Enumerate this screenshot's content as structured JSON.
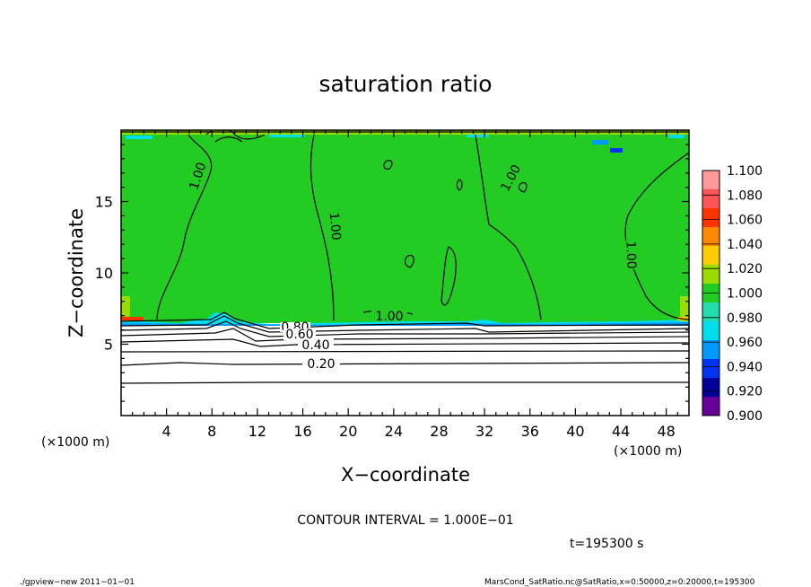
{
  "chart_data": {
    "type": "heatmap",
    "title": "saturation ratio",
    "xlabel": "X−coordinate",
    "ylabel": "Z−coordinate",
    "x_unit_left": "(×1000 m)",
    "x_unit_right": "(×1000 m)",
    "xlim": [
      0,
      50
    ],
    "ylim": [
      0,
      20
    ],
    "x_ticks": [
      4,
      8,
      12,
      16,
      20,
      24,
      28,
      32,
      36,
      40,
      44,
      48
    ],
    "y_ticks": [
      5,
      10,
      15
    ],
    "colorbar": {
      "levels": [
        "1.100",
        "1.080",
        "1.060",
        "1.040",
        "1.020",
        "1.000",
        "0.980",
        "0.960",
        "0.940",
        "0.920",
        "0.900"
      ],
      "colors": [
        "#ff9999",
        "#ff5555",
        "#ff3300",
        "#ff8800",
        "#ffcc00",
        "#99dd00",
        "#22cc22",
        "#22ddaa",
        "#00ddee",
        "#0099ff",
        "#0033ee",
        "#000099",
        "#660099"
      ]
    },
    "contour_labels": [
      {
        "text": "1.00",
        "x": 4.5,
        "z": 15.7
      },
      {
        "text": "1.00",
        "x": 18.6,
        "z": 12.5
      },
      {
        "text": "1.00",
        "x": 34.8,
        "z": 16.4
      },
      {
        "text": "1.00",
        "x": 44.0,
        "z": 11.3
      },
      {
        "text": "1.00",
        "x": 25.0,
        "z": 6.8
      },
      {
        "text": "0.80",
        "x": 16.0,
        "z": 6.2
      },
      {
        "text": "0.60",
        "x": 17.0,
        "z": 5.6
      },
      {
        "text": "0.40",
        "x": 18.0,
        "z": 4.9
      },
      {
        "text": "0.20",
        "x": 18.5,
        "z": 3.6
      }
    ],
    "annotations": {
      "contour_interval": "CONTOUR INTERVAL = 1.000E−01",
      "time": "t=195300 s"
    }
  },
  "footer": {
    "left": "./gpview−new   2011−01−01",
    "right": "MarsCond_SatRatio.nc@SatRatio,x=0:50000,z=0:20000,t=195300"
  }
}
